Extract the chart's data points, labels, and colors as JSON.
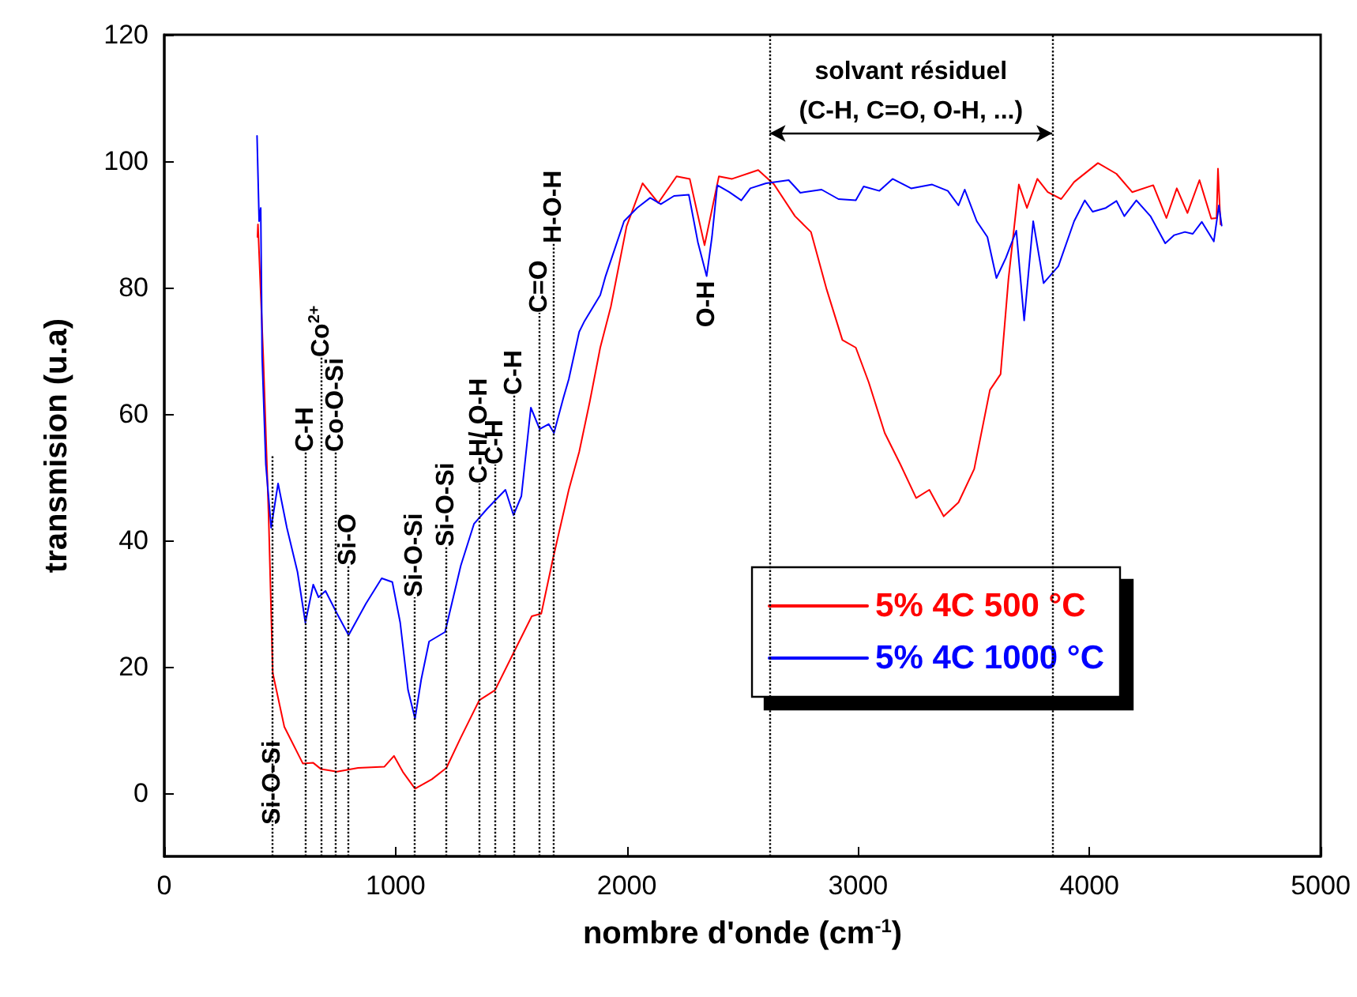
{
  "chart_data": {
    "type": "line",
    "xlabel": "nombre d'onde (cm$^{-1}$)",
    "ylabel": "transmision (u.a)",
    "xlim": [
      0,
      5000
    ],
    "xticks": [
      0,
      1000,
      2000,
      3000,
      4000,
      5000
    ],
    "ylim": [
      -10,
      120
    ],
    "yticks": [
      0,
      20,
      40,
      60,
      80,
      100,
      120
    ],
    "grid": false,
    "legend": "bottom right",
    "marker": "none",
    "line_style": "solid",
    "series": [
      {
        "name": "5% 4C 500 °C",
        "color": "#ff0000",
        "x": [
          403,
          405,
          428,
          451,
          469,
          519,
          599,
          644,
          678,
          747,
          838,
          952,
          993,
          1031,
          1084,
          1157,
          1220,
          1282,
          1362,
          1430,
          1521,
          1589,
          1630,
          1680,
          1749,
          1794,
          1840,
          1885,
          1931,
          1999,
          2068,
          2136,
          2215,
          2272,
          2336,
          2398,
          2455,
          2568,
          2637,
          2727,
          2796,
          2864,
          2932,
          2990,
          3046,
          3115,
          3183,
          3251,
          3308,
          3370,
          3434,
          3502,
          3570,
          3616,
          3650,
          3695,
          3730,
          3775,
          3820,
          3878,
          3934,
          4037,
          4117,
          4185,
          4276,
          4333,
          4378,
          4424,
          4476,
          4527,
          4550,
          4556,
          4567
        ],
        "values": [
          88,
          90,
          69,
          44,
          19,
          10.5,
          4.7,
          4.8,
          3.8,
          3.4,
          4,
          4.2,
          5.9,
          3.4,
          0.7,
          2.2,
          4,
          8.8,
          14.7,
          16.3,
          23,
          28,
          28.4,
          37,
          48,
          54,
          62,
          70.5,
          77,
          89.7,
          96.5,
          93.4,
          97.6,
          97.2,
          86.7,
          97.6,
          97.2,
          98.6,
          96.3,
          91.3,
          88.8,
          79.7,
          71.7,
          70.5,
          65,
          57,
          52,
          46.7,
          48,
          43.8,
          46,
          51.3,
          63.8,
          66.3,
          81.3,
          96.3,
          92.6,
          97.2,
          95.1,
          94,
          96.7,
          99.7,
          98,
          95.1,
          96.2,
          91,
          95.7,
          91.8,
          97,
          90.9,
          91,
          98.8,
          90
        ]
      },
      {
        "name": "5% 4C 1000 °C",
        "color": "#0000ff",
        "x": [
          401,
          410,
          417,
          423,
          439,
          462,
          492,
          530,
          576,
          610,
          644,
          667,
          697,
          747,
          797,
          872,
          940,
          986,
          1020,
          1054,
          1084,
          1111,
          1145,
          1214,
          1282,
          1339,
          1396,
          1475,
          1510,
          1544,
          1585,
          1623,
          1662,
          1685,
          1726,
          1749,
          1794,
          1817,
          1885,
          1908,
          1988,
          2044,
          2101,
          2147,
          2204,
          2268,
          2307,
          2345,
          2368,
          2391,
          2443,
          2495,
          2534,
          2602,
          2700,
          2750,
          2842,
          2915,
          2990,
          3024,
          3092,
          3149,
          3229,
          3320,
          3388,
          3434,
          3461,
          3513,
          3559,
          3598,
          3639,
          3684,
          3718,
          3757,
          3802,
          3866,
          3934,
          3980,
          4014,
          4071,
          4117,
          4151,
          4203,
          4264,
          4328,
          4367,
          4413,
          4447,
          4486,
          4538,
          4560,
          4572
        ],
        "values": [
          104,
          90.5,
          92.6,
          69,
          52,
          42,
          49,
          42,
          35,
          27,
          33,
          31,
          32,
          28.4,
          25,
          30,
          34,
          33.4,
          27,
          16.3,
          11.8,
          18,
          24,
          25.5,
          36,
          42.6,
          45,
          48,
          44,
          47,
          61,
          57.6,
          58.4,
          57,
          62.6,
          65.5,
          73,
          74.7,
          78.8,
          81.8,
          90.5,
          92.6,
          94.2,
          93.2,
          94.5,
          94.7,
          87.2,
          81.8,
          88,
          96.2,
          95.1,
          93.8,
          95.7,
          96.5,
          97,
          95,
          95.5,
          94,
          93.8,
          96,
          95.3,
          97.2,
          95.7,
          96.3,
          95.3,
          93,
          95.5,
          90.5,
          88,
          81.5,
          84.7,
          89,
          74.8,
          90.5,
          80.7,
          83.4,
          90.5,
          93.8,
          92,
          92.6,
          93.7,
          91.3,
          93.8,
          91.3,
          87,
          88.3,
          88.8,
          88.5,
          90.4,
          87.3,
          93,
          89.8
        ]
      }
    ],
    "ref_lines": [
      {
        "axis": "x",
        "value": 469,
        "line_style": "dotted"
      },
      {
        "axis": "x",
        "value": 610,
        "line_style": "dotted"
      },
      {
        "axis": "x",
        "value": 678,
        "line_style": "dotted"
      },
      {
        "axis": "x",
        "value": 740,
        "line_style": "dotted"
      },
      {
        "axis": "x",
        "value": 797,
        "line_style": "dotted"
      },
      {
        "axis": "x",
        "value": 1084,
        "line_style": "dotted"
      },
      {
        "axis": "x",
        "value": 1218,
        "line_style": "dotted"
      },
      {
        "axis": "x",
        "value": 1362,
        "line_style": "dotted"
      },
      {
        "axis": "x",
        "value": 1430,
        "line_style": "dotted"
      },
      {
        "axis": "x",
        "value": 1514,
        "line_style": "dotted"
      },
      {
        "axis": "x",
        "value": 1623,
        "line_style": "dotted"
      },
      {
        "axis": "x",
        "value": 1685,
        "line_style": "dotted"
      },
      {
        "axis": "x",
        "value": 2618,
        "line_style": "dotted"
      },
      {
        "axis": "x",
        "value": 3839,
        "line_style": "dotted"
      }
    ],
    "annotations": [
      {
        "text": "Si-O-Si",
        "x": 469,
        "y": -5
      },
      {
        "text": "C-H",
        "x": 610,
        "y": 54
      },
      {
        "text": "Co$^{2+}$",
        "x": 678,
        "y": 69
      },
      {
        "text": "Co-O-Si",
        "x": 740,
        "y": 54
      },
      {
        "text": "Si-O",
        "x": 797,
        "y": 36
      },
      {
        "text": "Si-O-Si",
        "x": 1084,
        "y": 31
      },
      {
        "text": "Si-O-Si",
        "x": 1218,
        "y": 39
      },
      {
        "text": "C-H/ O-H",
        "x": 1362,
        "y": 49
      },
      {
        "text": "C-H",
        "x": 1430,
        "y": 52
      },
      {
        "text": "C-H",
        "x": 1514,
        "y": 63
      },
      {
        "text": "C=O",
        "x": 1623,
        "y": 76
      },
      {
        "text": "H-O-H",
        "x": 1685,
        "y": 87
      },
      {
        "text": "O-H",
        "x": 2345,
        "y": 81.8
      },
      "solvant résiduel",
      "(C-H, C=O, O-H, ...)"
    ]
  }
}
